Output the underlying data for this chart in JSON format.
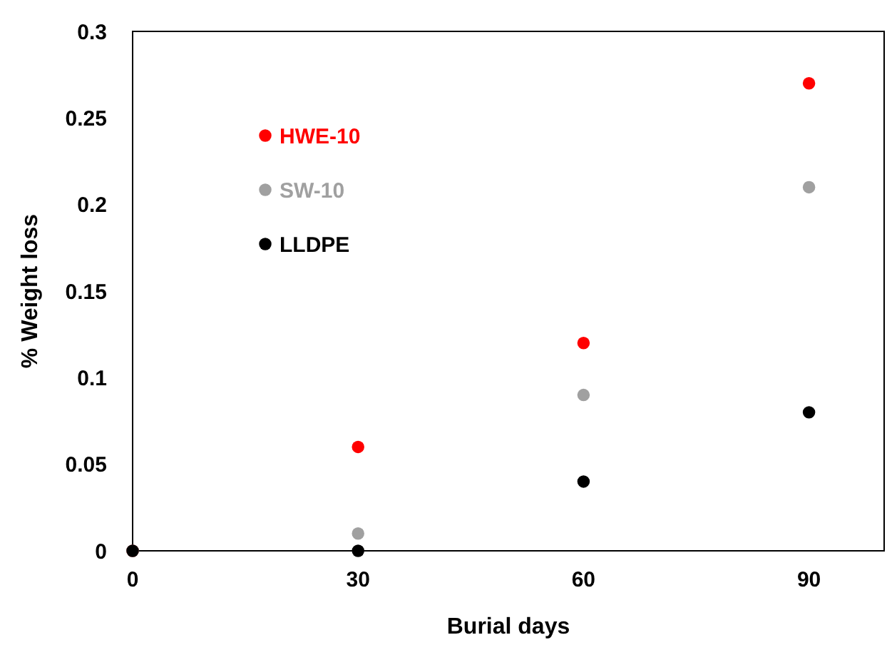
{
  "chart_data": {
    "type": "scatter",
    "xlabel": "Burial days",
    "ylabel": "% Weight loss",
    "x": [
      0,
      30,
      60,
      90
    ],
    "series": [
      {
        "name": "HWE-10",
        "color": "#ff0000",
        "values": [
          0,
          0.06,
          0.12,
          0.27
        ]
      },
      {
        "name": "SW-10",
        "color": "#a0a0a0",
        "values": [
          0,
          0.01,
          0.09,
          0.21
        ]
      },
      {
        "name": "LLDPE",
        "color": "#000000",
        "values": [
          0,
          0,
          0.04,
          0.08
        ]
      }
    ],
    "xlim": [
      0,
      100
    ],
    "xticks": [
      0,
      30,
      60,
      90
    ],
    "ylim": [
      0,
      0.3
    ],
    "yticks": [
      0,
      0.05,
      0.1,
      0.15,
      0.2,
      0.25,
      0.3
    ],
    "grid": false,
    "legend": "top left",
    "marker": "circle"
  }
}
